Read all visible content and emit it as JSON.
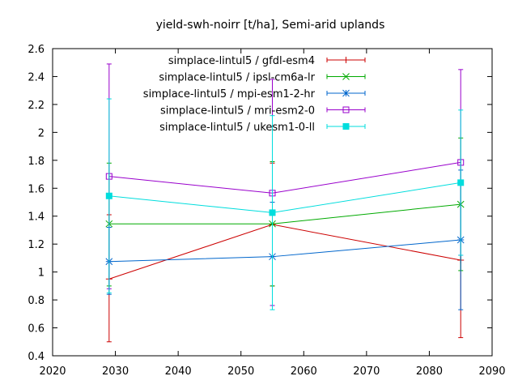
{
  "chart_data": {
    "type": "line",
    "title": "yield-swh-noirr [t/ha], Semi-arid uplands",
    "xlabel": "",
    "ylabel": "",
    "xlim": [
      2020,
      2090
    ],
    "ylim": [
      0.4,
      2.6
    ],
    "x_ticks": [
      "2020",
      "2030",
      "2040",
      "2050",
      "2060",
      "2070",
      "2080",
      "2090"
    ],
    "y_ticks": [
      "0.4",
      "0.6",
      "0.8",
      "1",
      "1.2",
      "1.4",
      "1.6",
      "1.8",
      "2",
      "2.2",
      "2.4",
      "2.6"
    ],
    "grid": false,
    "legend_position": "top-right",
    "x": [
      2029,
      2055,
      2085
    ],
    "series": [
      {
        "name": "simplace-lintul5 / gfdl-esm4",
        "color": "#cc0000",
        "marker": "plus",
        "values": [
          0.95,
          1.34,
          1.085
        ],
        "err_low": [
          0.5,
          0.9,
          0.53
        ],
        "err_high": [
          1.41,
          1.78,
          1.63
        ]
      },
      {
        "name": "simplace-lintul5 / ipsl-cm6a-lr",
        "color": "#00aa00",
        "marker": "cross",
        "values": [
          1.345,
          1.345,
          1.485
        ],
        "err_low": [
          0.9,
          0.9,
          1.01
        ],
        "err_high": [
          1.78,
          1.79,
          1.96
        ]
      },
      {
        "name": "simplace-lintul5 / mpi-esm1-2-hr",
        "color": "#0066cc",
        "marker": "star",
        "values": [
          1.075,
          1.11,
          1.23
        ],
        "err_low": [
          0.84,
          0.76,
          0.73
        ],
        "err_high": [
          1.32,
          1.5,
          1.73
        ]
      },
      {
        "name": "simplace-lintul5 / mri-esm2-0",
        "color": "#9900cc",
        "marker": "square-open",
        "values": [
          1.685,
          1.565,
          1.785
        ],
        "err_low": [
          0.88,
          0.76,
          1.12
        ],
        "err_high": [
          2.49,
          2.38,
          2.45
        ]
      },
      {
        "name": "simplace-lintul5 / ukesm1-0-ll",
        "color": "#00dddd",
        "marker": "square-filled",
        "values": [
          1.545,
          1.425,
          1.64
        ],
        "err_low": [
          0.85,
          0.73,
          1.12
        ],
        "err_high": [
          2.24,
          2.12,
          2.16
        ]
      }
    ]
  }
}
